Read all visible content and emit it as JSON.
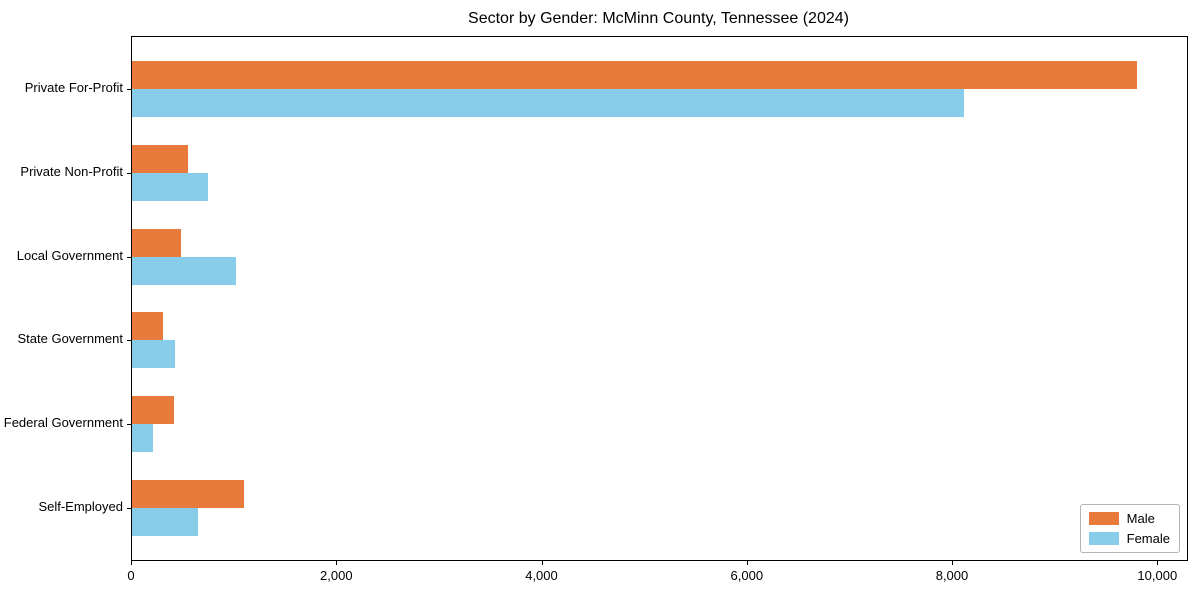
{
  "title": "Sector by Gender: McMinn County, Tennessee (2024)",
  "chart_data": {
    "type": "bar",
    "orientation": "horizontal",
    "title": "Sector by Gender: McMinn County, Tennessee (2024)",
    "categories": [
      "Private For-Profit",
      "Private Non-Profit",
      "Local Government",
      "State Government",
      "Federal Government",
      "Self-Employed"
    ],
    "series": [
      {
        "name": "Male",
        "color": "#e87a3c",
        "values": [
          9790,
          545,
          478,
          306,
          413,
          1095
        ]
      },
      {
        "name": "Female",
        "color": "#87cde9",
        "values": [
          8105,
          740,
          1012,
          419,
          208,
          640
        ]
      }
    ],
    "xlabel": "",
    "ylabel": "",
    "xlim": [
      0,
      10280
    ],
    "xticks": [
      0,
      2000,
      4000,
      6000,
      8000,
      10000
    ],
    "xtick_labels": [
      "0",
      "2,000",
      "4,000",
      "6,000",
      "8,000",
      "10,000"
    ],
    "grid": false,
    "legend_position": "lower right",
    "background": "#ffffff",
    "spine_color": "#000000"
  }
}
